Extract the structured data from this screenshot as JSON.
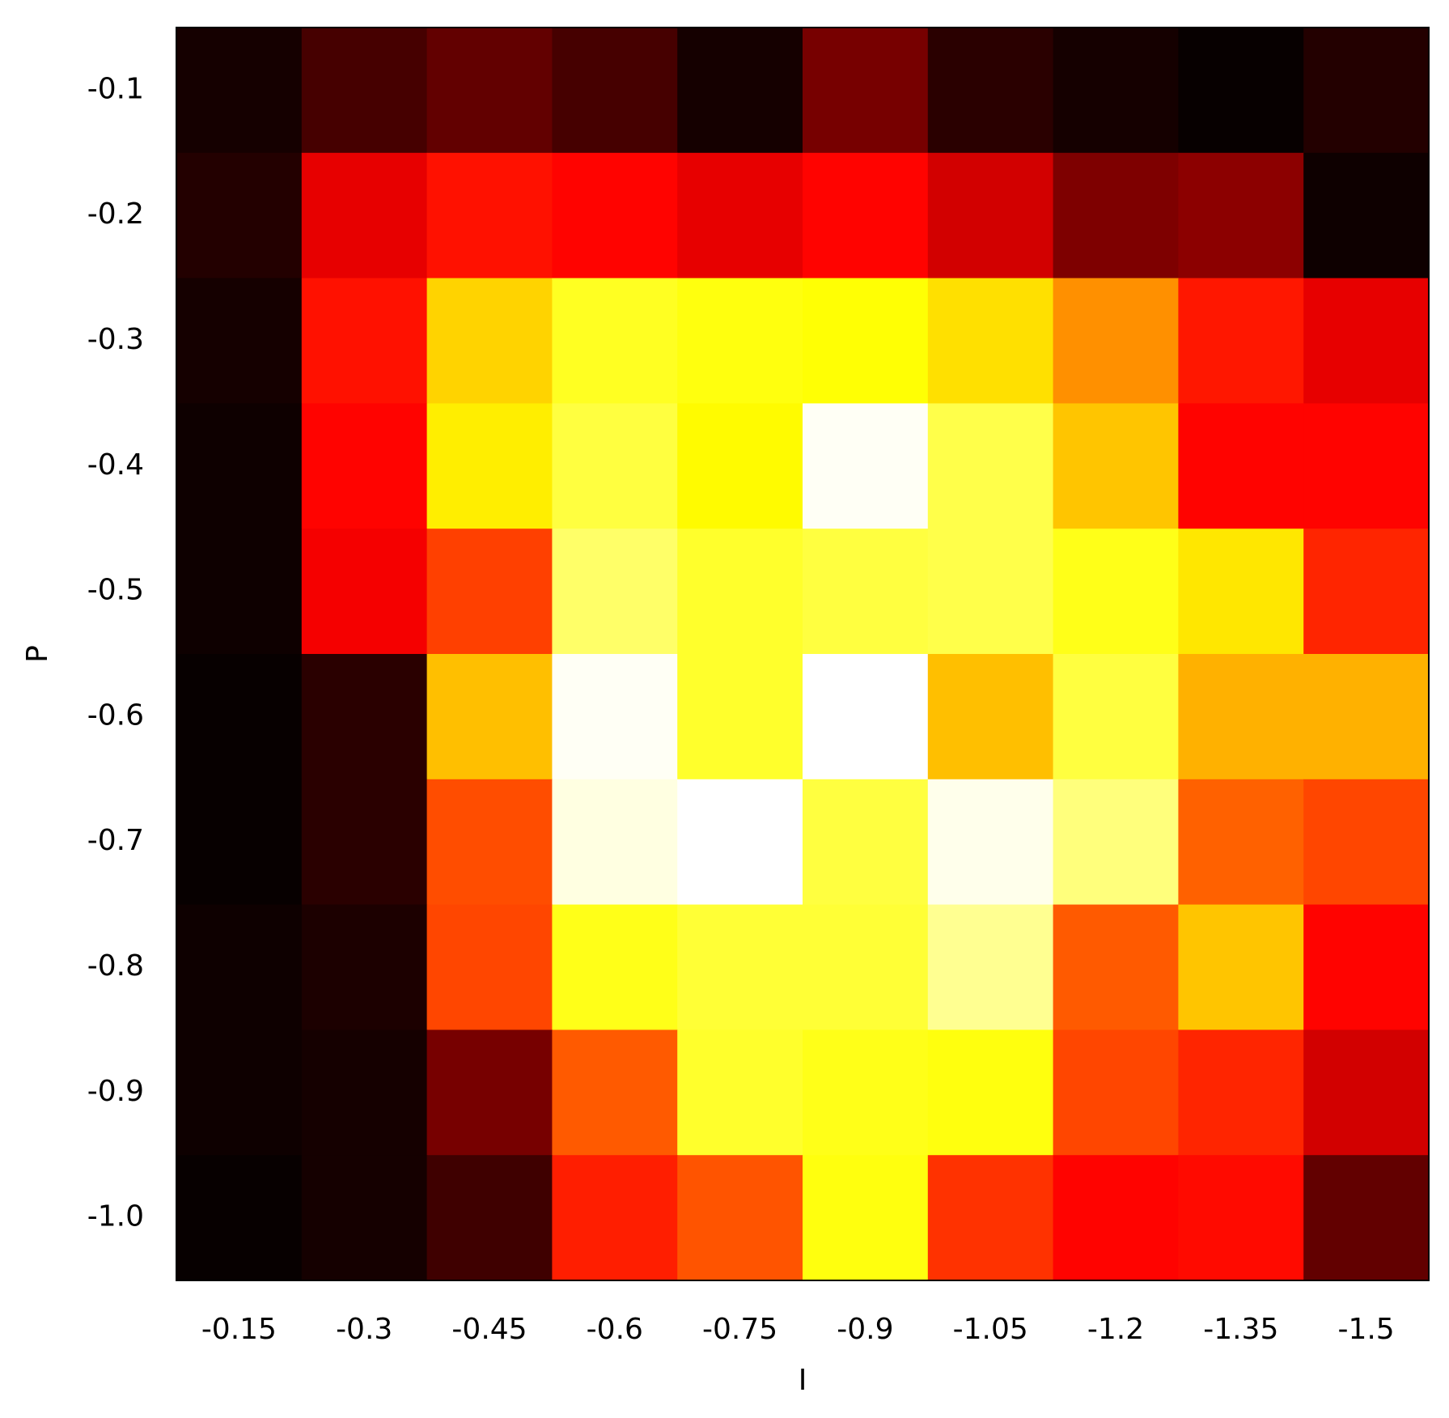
{
  "chart_data": {
    "type": "heatmap",
    "colormap": "hot",
    "x_label": "I",
    "y_label": "P",
    "x_categories": [
      "-0.15",
      "-0.3",
      "-0.45",
      "-0.6",
      "-0.75",
      "-0.9",
      "-1.05",
      "-1.2",
      "-1.35",
      "-1.5"
    ],
    "y_categories": [
      "-0.1",
      "-0.2",
      "-0.3",
      "-0.4",
      "-0.5",
      "-0.6",
      "-0.7",
      "-0.8",
      "-0.9",
      "-1.0"
    ],
    "values": [
      [
        0.03,
        0.1,
        0.14,
        0.1,
        0.03,
        0.17,
        0.06,
        0.03,
        0.01,
        0.05
      ],
      [
        0.05,
        0.33,
        0.39,
        0.37,
        0.33,
        0.37,
        0.3,
        0.18,
        0.2,
        0.02
      ],
      [
        0.03,
        0.39,
        0.68,
        0.78,
        0.76,
        0.75,
        0.7,
        0.58,
        0.4,
        0.33
      ],
      [
        0.02,
        0.37,
        0.72,
        0.81,
        0.74,
        0.99,
        0.82,
        0.66,
        0.37,
        0.37
      ],
      [
        0.02,
        0.35,
        0.46,
        0.85,
        0.79,
        0.81,
        0.82,
        0.77,
        0.71,
        0.42
      ],
      [
        0.01,
        0.06,
        0.65,
        0.99,
        0.79,
        1.0,
        0.65,
        0.81,
        0.63,
        0.63
      ],
      [
        0.01,
        0.06,
        0.48,
        0.97,
        1.0,
        0.81,
        0.98,
        0.87,
        0.51,
        0.47
      ],
      [
        0.02,
        0.04,
        0.47,
        0.77,
        0.8,
        0.8,
        0.89,
        0.5,
        0.66,
        0.37
      ],
      [
        0.02,
        0.03,
        0.17,
        0.5,
        0.79,
        0.77,
        0.76,
        0.47,
        0.42,
        0.3
      ],
      [
        0.01,
        0.03,
        0.09,
        0.41,
        0.49,
        0.76,
        0.44,
        0.37,
        0.38,
        0.14
      ]
    ]
  }
}
